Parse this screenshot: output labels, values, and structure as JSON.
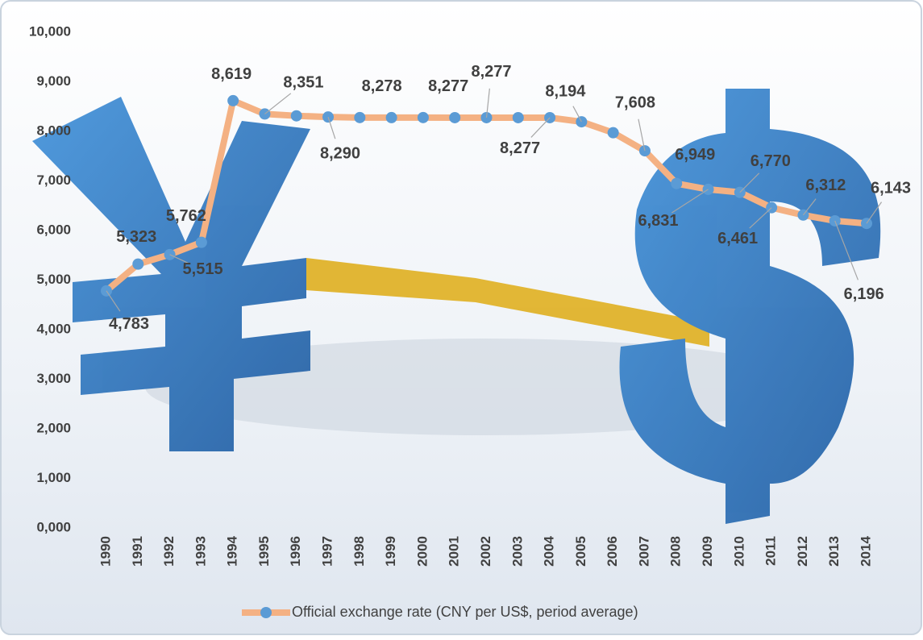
{
  "chart_data": {
    "type": "line",
    "categories": [
      "1990",
      "1991",
      "1992",
      "1993",
      "1994",
      "1995",
      "1996",
      "1997",
      "1998",
      "1999",
      "2000",
      "2001",
      "2002",
      "2003",
      "2004",
      "2005",
      "2006",
      "2007",
      "2008",
      "2009",
      "2010",
      "2011",
      "2012",
      "2013",
      "2014"
    ],
    "series": [
      {
        "name": "Official exchange rate (CNY per US$, period average)",
        "color": "#f4b183",
        "marker_color": "#5b9bd5",
        "values": [
          4.783,
          5.323,
          5.515,
          5.762,
          8.619,
          8.351,
          8.314,
          8.29,
          8.279,
          8.278,
          8.279,
          8.277,
          8.277,
          8.277,
          8.277,
          8.194,
          7.973,
          7.608,
          6.949,
          6.831,
          6.77,
          6.461,
          6.312,
          6.196,
          6.143
        ],
        "value_labels": [
          "4,783",
          "5,323",
          "5,515",
          "5,762",
          "8,619",
          "8,351",
          null,
          "8,290",
          null,
          "8,278",
          null,
          "8,277",
          "8,277",
          null,
          "8,277",
          "8,194",
          null,
          "7,608",
          "6,949",
          "6,831",
          "6,770",
          "6,461",
          "6,312",
          "6,196",
          "6,143"
        ]
      }
    ],
    "ylim": [
      0,
      10
    ],
    "yticks": [
      {
        "value": 0,
        "label": "0,000"
      },
      {
        "value": 1,
        "label": "1,000"
      },
      {
        "value": 2,
        "label": "2,000"
      },
      {
        "value": 3,
        "label": "3,000"
      },
      {
        "value": 4,
        "label": "4,000"
      },
      {
        "value": 5,
        "label": "5,000"
      },
      {
        "value": 6,
        "label": "6,000"
      },
      {
        "value": 7,
        "label": "7,000"
      },
      {
        "value": 8,
        "label": "8,000"
      },
      {
        "value": 9,
        "label": "9,000"
      },
      {
        "value": 10,
        "label": "10,000"
      }
    ],
    "legend": "bottom"
  }
}
